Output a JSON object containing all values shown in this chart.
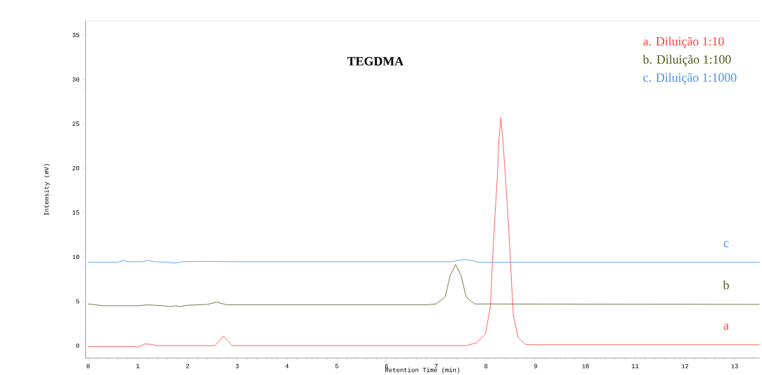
{
  "chart_data": {
    "type": "line",
    "title": "TEGDMA",
    "xlabel": "Retention Time (min)",
    "ylabel": "Intensity (mV)",
    "xlim": [
      -0.05,
      13.5
    ],
    "ylim": [
      -1.4,
      36.6
    ],
    "xticks": [
      0,
      1,
      2,
      3,
      4,
      5,
      6,
      7,
      8,
      9,
      10,
      11,
      12,
      13
    ],
    "yticks": [
      0,
      5,
      10,
      15,
      20,
      25,
      30,
      35
    ],
    "legend": "top right",
    "grid": false,
    "marker": "none",
    "line_style": "solid",
    "annotations": [
      "a",
      "b",
      "c"
    ],
    "series": [
      {
        "name": "a. Diluição 1:10",
        "color": "#ff3b3b",
        "x": [
          0,
          0.9,
          1.0,
          1.15,
          1.25,
          1.4,
          2.55,
          2.65,
          2.72,
          2.8,
          2.9,
          7.6,
          7.8,
          7.99,
          8.09,
          8.13,
          8.18,
          8.23,
          8.26,
          8.3,
          8.34,
          8.39,
          8.45,
          8.5,
          8.55,
          8.65,
          8.79,
          8.9,
          13.5
        ],
        "values": [
          -0.1,
          -0.1,
          -0.15,
          0.2,
          0.15,
          0,
          0,
          0.6,
          1.1,
          0.6,
          0,
          0,
          0.3,
          1.3,
          4.5,
          9.5,
          14.45,
          19.2,
          23.1,
          25.7,
          23.1,
          19.2,
          13.9,
          8.6,
          3.4,
          0.9,
          0.15,
          0.1,
          0.1
        ]
      },
      {
        "name": "b. Diluição 1:100",
        "color": "#4b5a1a",
        "x": [
          0,
          0.3,
          1.0,
          1.2,
          1.5,
          1.65,
          1.75,
          1.85,
          2.0,
          2.4,
          2.58,
          2.8,
          6.8,
          7.0,
          7.18,
          7.28,
          7.39,
          7.5,
          7.6,
          7.77,
          13.5
        ],
        "values": [
          4.7,
          4.5,
          4.5,
          4.6,
          4.5,
          4.4,
          4.5,
          4.4,
          4.55,
          4.65,
          4.9,
          4.6,
          4.6,
          4.7,
          5.5,
          7.9,
          9.14,
          7.9,
          5.5,
          4.7,
          4.65
        ]
      },
      {
        "name": "c. Diluição 1:1000",
        "color": "#4a8ff0",
        "x": [
          0,
          0.6,
          0.7,
          0.8,
          1.1,
          1.2,
          1.35,
          1.6,
          1.75,
          1.9,
          2.2,
          3.0,
          7.3,
          7.45,
          7.58,
          7.7,
          7.85,
          13.5
        ],
        "values": [
          9.4,
          9.4,
          9.6,
          9.45,
          9.45,
          9.6,
          9.45,
          9.4,
          9.3,
          9.45,
          9.5,
          9.45,
          9.45,
          9.6,
          9.7,
          9.6,
          9.4,
          9.4
        ]
      }
    ]
  }
}
